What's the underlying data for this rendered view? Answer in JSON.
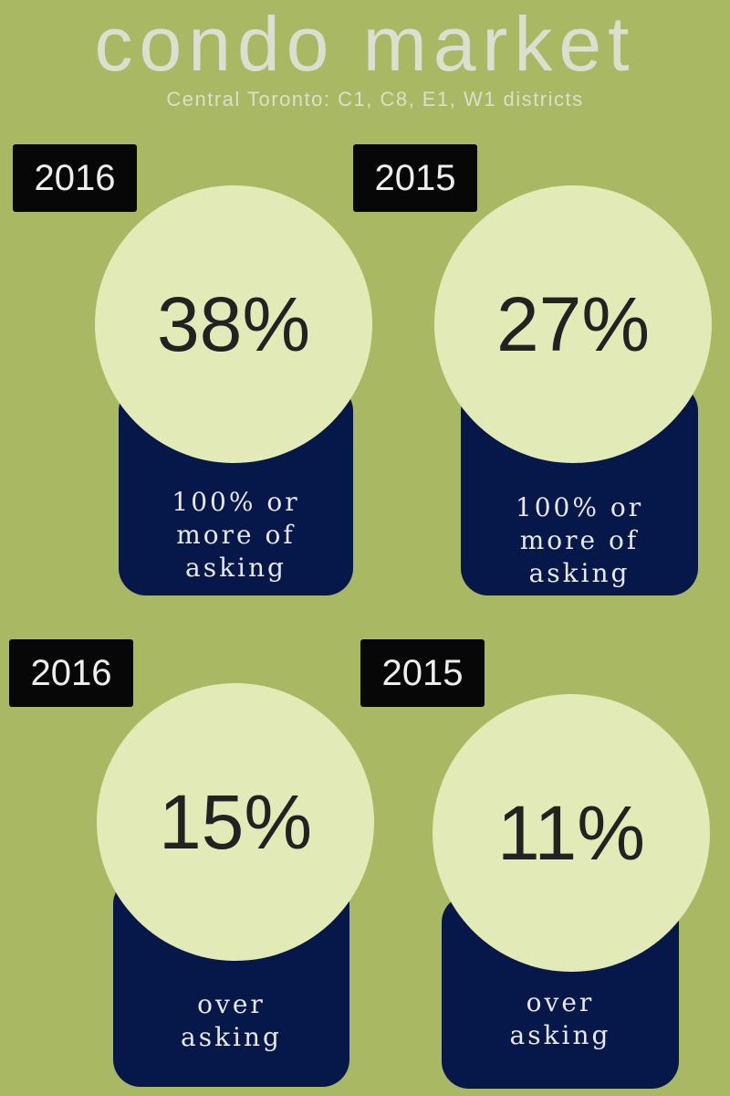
{
  "header": {
    "title": "condo market",
    "subtitle": "Central Toronto: C1, C8, E1, W1 districts"
  },
  "cards": [
    {
      "year": "2016",
      "value": "38%",
      "label": [
        "100% or",
        "more of",
        "asking"
      ]
    },
    {
      "year": "2015",
      "value": "27%",
      "label": [
        "100% or",
        "more of",
        "asking"
      ]
    },
    {
      "year": "2016",
      "value": "15%",
      "label": [
        "over",
        "asking"
      ]
    },
    {
      "year": "2015",
      "value": "11%",
      "label": [
        "over",
        "asking"
      ]
    }
  ]
}
